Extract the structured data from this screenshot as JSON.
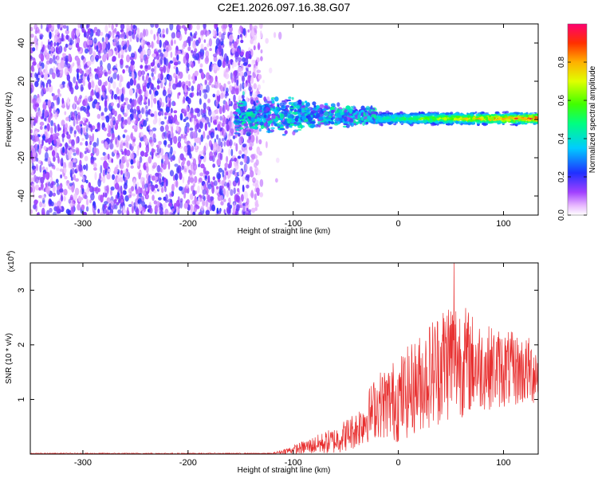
{
  "title": "C2E1.2026.097.16.38.G07",
  "chart_data": [
    {
      "type": "heatmap",
      "title": "C2E1.2026.097.16.38.G07",
      "xlabel": "Height of straight line (km)",
      "ylabel": "Frequency (Hz)",
      "xlim": [
        -350,
        133
      ],
      "ylim": [
        -50,
        50
      ],
      "xticks": [
        -300,
        -200,
        -100,
        0,
        100
      ],
      "yticks": [
        -40,
        -20,
        0,
        20,
        40
      ],
      "colorbar": {
        "label": "Normalized spectral amplitude",
        "range": [
          0,
          1
        ],
        "ticks": [
          "0.0",
          "0.2",
          "0.4",
          "0.6",
          "0.8"
        ]
      },
      "regions": [
        {
          "description": "noise",
          "x": [
            -350,
            -130
          ],
          "y": [
            -50,
            50
          ],
          "amplitude": 0.1
        },
        {
          "description": "transition",
          "x": [
            -155,
            -20
          ],
          "y": [
            -10,
            12
          ],
          "amplitude": 0.35
        },
        {
          "description": "signal",
          "x": [
            -20,
            133
          ],
          "y": [
            -3,
            4
          ],
          "amplitude": 0.9
        }
      ]
    },
    {
      "type": "line",
      "xlabel": "Height of straight line (km)",
      "ylabel": "SNR (10 * v/v)",
      "yscale_label": "(x10",
      "yscale_exp": "4",
      "yscale_close": ")",
      "xlim": [
        -350,
        133
      ],
      "ylim": [
        0,
        3.5
      ],
      "xticks": [
        -300,
        -200,
        -100,
        0,
        100
      ],
      "yticks": [
        1,
        2,
        3
      ],
      "series": [
        {
          "name": "SNR",
          "color": "#e83030",
          "envelope": [
            {
              "x": -350,
              "mean": 0.01,
              "spread": 0.01
            },
            {
              "x": -120,
              "mean": 0.01,
              "spread": 0.01
            },
            {
              "x": -100,
              "mean": 0.08,
              "spread": 0.08
            },
            {
              "x": -60,
              "mean": 0.25,
              "spread": 0.25
            },
            {
              "x": -40,
              "mean": 0.45,
              "spread": 0.35
            },
            {
              "x": -20,
              "mean": 0.9,
              "spread": 0.6
            },
            {
              "x": 0,
              "mean": 1.0,
              "spread": 0.8
            },
            {
              "x": 20,
              "mean": 1.3,
              "spread": 0.9
            },
            {
              "x": 50,
              "mean": 1.8,
              "spread": 1.2
            },
            {
              "x": 80,
              "mean": 1.6,
              "spread": 0.8
            },
            {
              "x": 133,
              "mean": 1.5,
              "spread": 0.6
            }
          ],
          "peak": {
            "x": 53,
            "y": 3.5
          }
        }
      ]
    }
  ]
}
